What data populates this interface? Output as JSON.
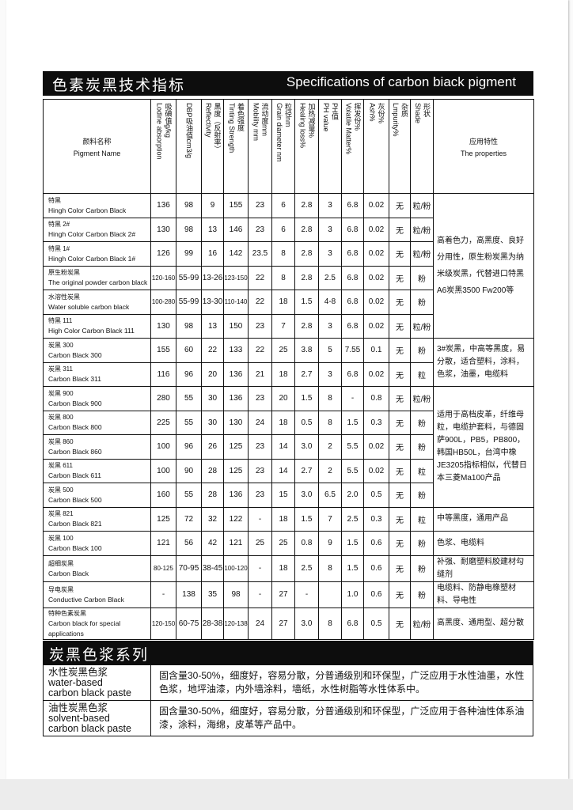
{
  "title": {
    "cn": "色素炭黑技术指标",
    "en": "Specifications of carbon biack pigment"
  },
  "header": {
    "name": {
      "cn": "颜料名称",
      "en": "Pigment Name"
    },
    "columns": [
      {
        "cn": "吸碘值g/kg",
        "en": "Lodine absorption"
      },
      {
        "cn": "DBP吸油值cm3/g",
        "en": ""
      },
      {
        "cn": "黑度（反射率）",
        "en": "Reflectivity"
      },
      {
        "cn": "着色强度",
        "en": "Tinting Strength"
      },
      {
        "cn": "流动度mm",
        "en": "Mobility mm"
      },
      {
        "cn": "粒径nm",
        "en": "Grain diameter nm"
      },
      {
        "cn": "加热减量%",
        "en": "Healing loss%"
      },
      {
        "cn": "PH值",
        "en": "PH value"
      },
      {
        "cn": "挥发份%",
        "en": "Volatile Matter%"
      },
      {
        "cn": "灰份%",
        "en": "Ash%"
      },
      {
        "cn": "杂质",
        "en": "Lmpurity%"
      },
      {
        "cn": "形状",
        "en": "Shade"
      }
    ],
    "properties": {
      "cn": "应用特性",
      "en": "The properties"
    }
  },
  "rows": [
    {
      "cn": "特黑",
      "en": "Hingh Color Carbon Black",
      "values": [
        "136",
        "98",
        "9",
        "155",
        "23",
        "6",
        "2.8",
        "3",
        "6.8",
        "0.02",
        "无",
        "粒/粉"
      ]
    },
    {
      "cn": "特黑 2#",
      "en": "Hingh Color Carbon Black 2#",
      "values": [
        "130",
        "98",
        "13",
        "146",
        "23",
        "6",
        "2.8",
        "3",
        "6.8",
        "0.02",
        "无",
        "粒/粉"
      ]
    },
    {
      "cn": "特黑 1#",
      "en": "Hingh Color Carbon Black 1#",
      "values": [
        "126",
        "99",
        "16",
        "142",
        "23.5",
        "8",
        "2.8",
        "3",
        "6.8",
        "0.02",
        "无",
        "粒/粉"
      ]
    },
    {
      "cn": "原生粉炭黑",
      "en": "The original powder carbon black",
      "values": [
        "120-160",
        "55-99",
        "13-26",
        "123-150",
        "22",
        "8",
        "2.8",
        "2.5",
        "6.8",
        "0.02",
        "无",
        "粉"
      ]
    },
    {
      "cn": "水溶性炭黑",
      "en": "Water soluble carbon black",
      "values": [
        "100-280",
        "55-99",
        "13-30",
        "110-140",
        "22",
        "18",
        "1.5",
        "4-8",
        "6.8",
        "0.02",
        "无",
        "粉"
      ]
    },
    {
      "cn": "特黑 111",
      "en": "High Color Carbon Black 111",
      "values": [
        "130",
        "98",
        "13",
        "150",
        "23",
        "7",
        "2.8",
        "3",
        "6.8",
        "0.02",
        "无",
        "粒/粉"
      ]
    },
    {
      "cn": "炭黑 300",
      "en": "Carbon Black 300",
      "values": [
        "155",
        "60",
        "22",
        "133",
        "22",
        "25",
        "3.8",
        "5",
        "7.55",
        "0.1",
        "无",
        "粉"
      ]
    },
    {
      "cn": "炭黑 311",
      "en": "Carbon Black 311",
      "values": [
        "116",
        "96",
        "20",
        "136",
        "21",
        "18",
        "2.7",
        "3",
        "6.8",
        "0.02",
        "无",
        "粒"
      ]
    },
    {
      "cn": "炭黑 900",
      "en": "Carbon Black 900",
      "values": [
        "280",
        "55",
        "30",
        "136",
        "23",
        "20",
        "1.5",
        "8",
        "-",
        "0.8",
        "无",
        "粒/粉"
      ]
    },
    {
      "cn": "炭黑 800",
      "en": "Carbon Black 800",
      "values": [
        "225",
        "55",
        "30",
        "130",
        "24",
        "18",
        "0.5",
        "8",
        "1.5",
        "0.3",
        "无",
        "粉"
      ]
    },
    {
      "cn": "炭黑 860",
      "en": "Carbon Black 860",
      "values": [
        "100",
        "96",
        "26",
        "125",
        "23",
        "14",
        "3.0",
        "2",
        "5.5",
        "0.02",
        "无",
        "粉"
      ]
    },
    {
      "cn": "炭黑 611",
      "en": "Carbon Black 611",
      "values": [
        "100",
        "90",
        "28",
        "125",
        "23",
        "14",
        "2.7",
        "2",
        "5.5",
        "0.02",
        "无",
        "粒"
      ]
    },
    {
      "cn": "炭黑 500",
      "en": "Carbon Black 500",
      "values": [
        "160",
        "55",
        "28",
        "136",
        "23",
        "15",
        "3.0",
        "6.5",
        "2.0",
        "0.5",
        "无",
        "粉"
      ]
    },
    {
      "cn": "炭黑 821",
      "en": "Carbon Black 821",
      "values": [
        "125",
        "72",
        "32",
        "122",
        "-",
        "18",
        "1.5",
        "7",
        "2.5",
        "0.3",
        "无",
        "粒"
      ]
    },
    {
      "cn": "炭黑 100",
      "en": "Carbon Black 100",
      "values": [
        "121",
        "56",
        "42",
        "121",
        "25",
        "25",
        "0.8",
        "9",
        "1.5",
        "0.6",
        "无",
        "粉"
      ]
    },
    {
      "cn": "超细炭黑",
      "en": "Carbon Black",
      "values": [
        "80-125",
        "70-95",
        "38-45",
        "100-120",
        "-",
        "18",
        "2.5",
        "8",
        "1.5",
        "0.6",
        "无",
        "粉"
      ]
    },
    {
      "cn": "导电炭黑",
      "en": "Conductive Carbon Black",
      "values": [
        "-",
        "138",
        "35",
        "98",
        "-",
        "27",
        "-",
        "",
        "1.0",
        "0.6",
        "无",
        "粉"
      ]
    },
    {
      "cn": "特种色素炭黑",
      "en": "Carbon black for special applications",
      "values": [
        "120-150",
        "60-75",
        "28-38",
        "120-138",
        "24",
        "27",
        "3.0",
        "8",
        "6.8",
        "0.5",
        "无",
        "粒/粉"
      ]
    }
  ],
  "properties": [
    {
      "start": 0,
      "span": 6,
      "big": true,
      "text": "高着色力，高黑度、良好分用性，原生粉炭黑为纳米级炭黑，代替进口特黑A6炭黑3500 Fw200等"
    },
    {
      "start": 6,
      "span": 2,
      "text": "3#炭黑，中高等黑度，易分散，适合塑料，涂料，色浆，油墨，电缆料"
    },
    {
      "start": 8,
      "span": 5,
      "text": "适用于高档皮革，纤维母粒，电缆护套料，与德固萨900L，PB5，PB800，韩国HB50L，台湾中橡JE3205指标相似，代替日本三菱Ma100产品"
    },
    {
      "start": 13,
      "span": 1,
      "text": "中等黑度，通用产品"
    },
    {
      "start": 14,
      "span": 1,
      "text": "色浆、电缆料"
    },
    {
      "start": 15,
      "span": 1,
      "text": "补强、耐磨塑料胶建材勾缝剂"
    },
    {
      "start": 16,
      "span": 1,
      "text": "电缆料、防静电橡塑材料、导电性"
    },
    {
      "start": 17,
      "span": 1,
      "text": "高黑度、通用型、超分散"
    }
  ],
  "paste_section": {
    "title": "炭黑色浆系列",
    "items": [
      {
        "cn": "水性炭黑色浆",
        "en1": "water-based",
        "en2": "carbon black paste",
        "desc": "固含量30-50%，细度好，容易分散，分普通级别和环保型，广泛应用于水性油墨，水性色浆，地坪油漆，内外墙涂料，墙纸，水性树脂等水性体系中。"
      },
      {
        "cn": "油性炭黑色浆",
        "en1": "solvent-based",
        "en2": "carbon black paste",
        "desc": "固含量30-50%，细度好，容易分散，分普通级别和环保型，广泛应用于各种油性体系油漆，涂料，海绵，皮革等产品中。"
      }
    ]
  }
}
